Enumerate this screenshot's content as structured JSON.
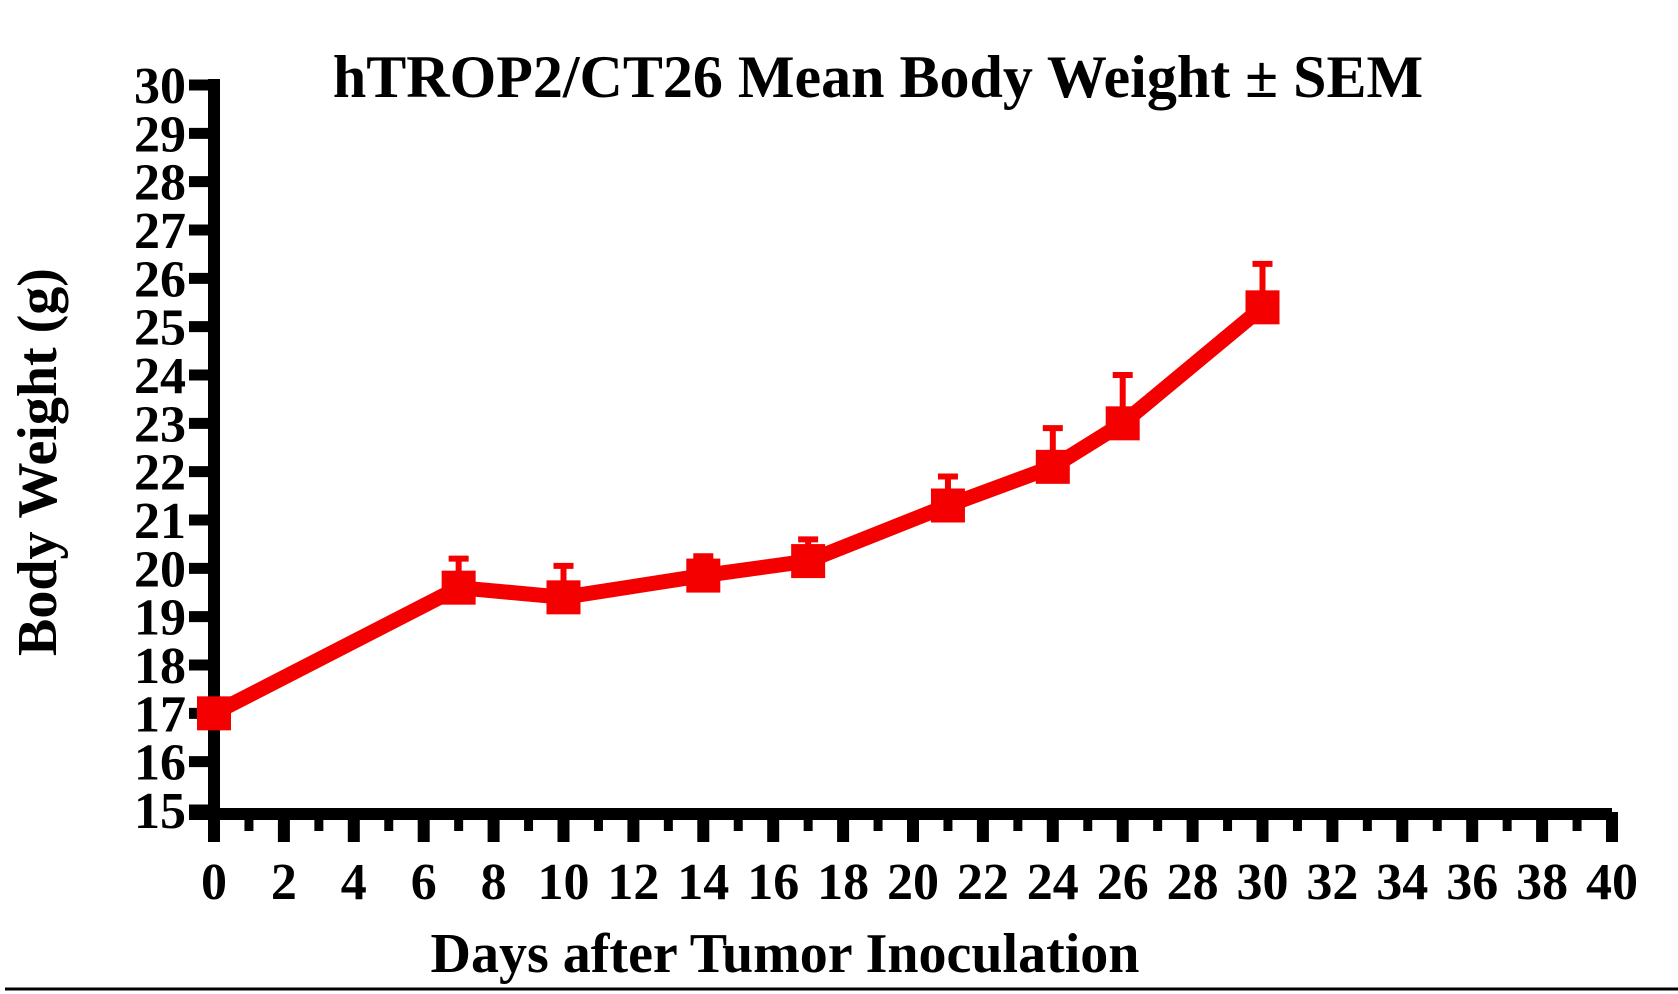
{
  "figure": {
    "background": "#ffffff",
    "has_bottom_rule": true
  },
  "colors": {
    "axis": "#000000",
    "text": "#000000",
    "series": "#f40000",
    "background": "#ffffff"
  },
  "chart_data": {
    "type": "line",
    "title": "hTROP2/CT26 Mean Body Weight ± SEM",
    "xlabel": "Days after Tumor Inoculation",
    "ylabel": "Body Weight (g)",
    "xlim": [
      0,
      40
    ],
    "ylim": [
      15,
      30
    ],
    "grid": false,
    "legend_position": "none",
    "x_major_tick_step": 2,
    "x_minor_tick_step": 1,
    "y_tick_step": 1,
    "x_tick_labels": [
      "0",
      "2",
      "4",
      "6",
      "8",
      "10",
      "12",
      "14",
      "16",
      "18",
      "20",
      "22",
      "24",
      "26",
      "28",
      "30",
      "32",
      "34",
      "36",
      "38",
      "40"
    ],
    "y_tick_labels": [
      "15",
      "16",
      "17",
      "18",
      "19",
      "20",
      "21",
      "22",
      "23",
      "24",
      "25",
      "26",
      "27",
      "28",
      "29",
      "30"
    ],
    "series": [
      {
        "name": "hTROP2/CT26 mean body weight",
        "color": "#f40000",
        "marker": "filled-square",
        "error_bars": "upper-SEM-only",
        "x": [
          0,
          7,
          10,
          14,
          17,
          21,
          24,
          26,
          30
        ],
        "y": [
          17.0,
          19.6,
          19.4,
          19.85,
          20.15,
          21.3,
          22.1,
          23.0,
          25.4
        ],
        "sem": [
          0,
          0.6,
          0.65,
          0.4,
          0.45,
          0.6,
          0.8,
          1.0,
          0.9
        ]
      }
    ]
  }
}
